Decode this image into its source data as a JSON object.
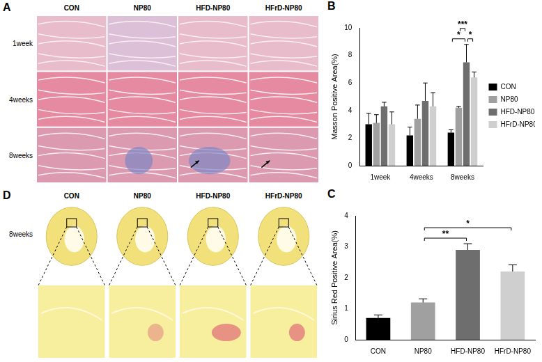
{
  "figure": {
    "panels": [
      {
        "panel": "A",
        "type": "image_grid",
        "columns": [
          "CON",
          "NP80",
          "HFD-NP80",
          "HFrD-NP80"
        ],
        "rows": [
          "1week",
          "4weeks",
          "8weeks"
        ]
      },
      {
        "panel": "D",
        "type": "image_grid",
        "columns": [
          "CON",
          "NP80",
          "HFD-NP80",
          "HFrD-NP80"
        ],
        "rows": [
          "8weeks"
        ]
      }
    ]
  },
  "chart_data": [
    {
      "panel": "B",
      "type": "bar",
      "categories": [
        "1week",
        "4weeks",
        "8weeks"
      ],
      "y_label": "Masson Positive Area(%)",
      "ylim": [
        0,
        10
      ],
      "yticks": [
        0,
        2,
        4,
        6,
        8,
        10
      ],
      "grid": false,
      "legend": "right",
      "series": [
        {
          "name": "CON",
          "color": "#000000",
          "values": [
            3.0,
            2.2,
            2.4
          ],
          "errors": [
            0.8,
            0.6,
            0.2
          ]
        },
        {
          "name": "NP80",
          "color": "#a0a0a0",
          "values": [
            3.1,
            3.4,
            4.2
          ],
          "errors": [
            0.6,
            1.0,
            0.1
          ]
        },
        {
          "name": "HFD-NP80",
          "color": "#6e6e6e",
          "values": [
            4.3,
            4.7,
            7.5
          ],
          "errors": [
            0.3,
            1.3,
            1.3
          ]
        },
        {
          "name": "HFrD-NP80",
          "color": "#cfcfcf",
          "values": [
            3.0,
            4.3,
            6.4
          ],
          "errors": [
            0.9,
            1.0,
            0.4
          ]
        }
      ],
      "significance": [
        {
          "category": "8weeks",
          "from": "CON",
          "to": "HFD-NP80",
          "label": "*"
        },
        {
          "category": "8weeks",
          "from": "HFD-NP80",
          "to": "HFrD-NP80",
          "label": "*"
        },
        {
          "category": "8weeks",
          "from": "NP80",
          "to": "HFD-NP80",
          "label": "***"
        }
      ]
    },
    {
      "panel": "C",
      "type": "bar",
      "categories": [
        "CON",
        "NP80",
        "HFD-NP80",
        "HFrD-NP80"
      ],
      "values": [
        0.7,
        1.2,
        2.9,
        2.2
      ],
      "errors": [
        0.1,
        0.12,
        0.2,
        0.22
      ],
      "colors": [
        "#000000",
        "#a0a0a0",
        "#6e6e6e",
        "#cfcfcf"
      ],
      "y_label": "Sirius Red Positive Area(%)",
      "ylim": [
        0,
        4
      ],
      "yticks": [
        0,
        1,
        2,
        3,
        4
      ],
      "grid": false,
      "significance": [
        {
          "from": "NP80",
          "to": "HFD-NP80",
          "label": "**"
        },
        {
          "from": "NP80",
          "to": "HFrD-NP80",
          "label": "*"
        }
      ]
    }
  ]
}
